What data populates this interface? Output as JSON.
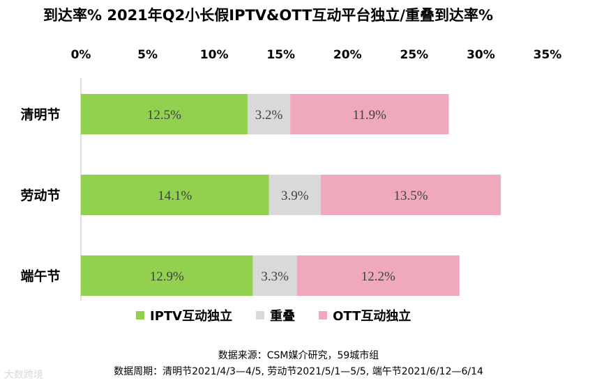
{
  "title": "到达率%  2021年Q2小长假IPTV&OTT互动平台独立/重叠到达率%",
  "chart_data": {
    "type": "bar",
    "orientation": "horizontal",
    "stacked": true,
    "categories": [
      "清明节",
      "劳动节",
      "端午节"
    ],
    "series": [
      {
        "name": "IPTV互动独立",
        "values": [
          12.5,
          14.1,
          12.9
        ],
        "labels": [
          "12.5%",
          "14.1%",
          "12.9%"
        ],
        "color": "#92d050"
      },
      {
        "name": "重叠",
        "values": [
          3.2,
          3.9,
          3.3
        ],
        "labels": [
          "3.2%",
          "3.9%",
          "3.3%"
        ],
        "color": "#d9d9d9"
      },
      {
        "name": "OTT互动独立",
        "values": [
          11.9,
          13.5,
          12.2
        ],
        "labels": [
          "11.9%",
          "13.5%",
          "12.2%"
        ],
        "color": "#f0a9bc"
      }
    ],
    "xlim": [
      0,
      35
    ],
    "xticks": [
      0,
      5,
      10,
      15,
      20,
      25,
      30,
      35
    ],
    "xtick_labels": [
      "0%",
      "5%",
      "10%",
      "15%",
      "20%",
      "25%",
      "30%",
      "35%"
    ],
    "axis_position": "top",
    "legend_position": "bottom"
  },
  "footer": {
    "source": "数据来源：CSM媒介研究，59城市组",
    "period": "数据周期：清明节2021/4/3—4/5, 劳动节2021/5/1—5/5, 端午节2021/6/12—6/14"
  },
  "watermark": "大数跨境"
}
